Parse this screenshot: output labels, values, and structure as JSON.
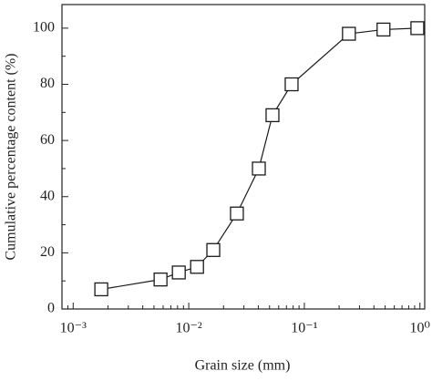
{
  "chart_data": {
    "type": "line",
    "log_x": true,
    "xlabel": "Grain size (mm)",
    "ylabel": "Cumulative percentage content (%)",
    "x": [
      0.00175,
      0.0057,
      0.0082,
      0.0118,
      0.0163,
      0.0261,
      0.0404,
      0.053,
      0.0776,
      0.243,
      0.484,
      0.95
    ],
    "series": [
      {
        "color": "#1a1a1a",
        "marker": "square-open",
        "values": [
          7,
          10.5,
          13,
          15,
          21,
          34,
          50,
          69,
          80,
          98,
          99.5,
          100
        ]
      }
    ],
    "xlim": [
      0.0008,
      1.1
    ],
    "xticks": [
      {
        "value": 0.001,
        "label": "10⁻³"
      },
      {
        "value": 0.01,
        "label": "10⁻²"
      },
      {
        "value": 0.1,
        "label": "10⁻¹"
      },
      {
        "value": 1,
        "label": "10⁰"
      }
    ],
    "ylim": [
      0,
      108.4
    ],
    "yticks": [
      0,
      20,
      40,
      60,
      80,
      100
    ],
    "grid": false
  }
}
